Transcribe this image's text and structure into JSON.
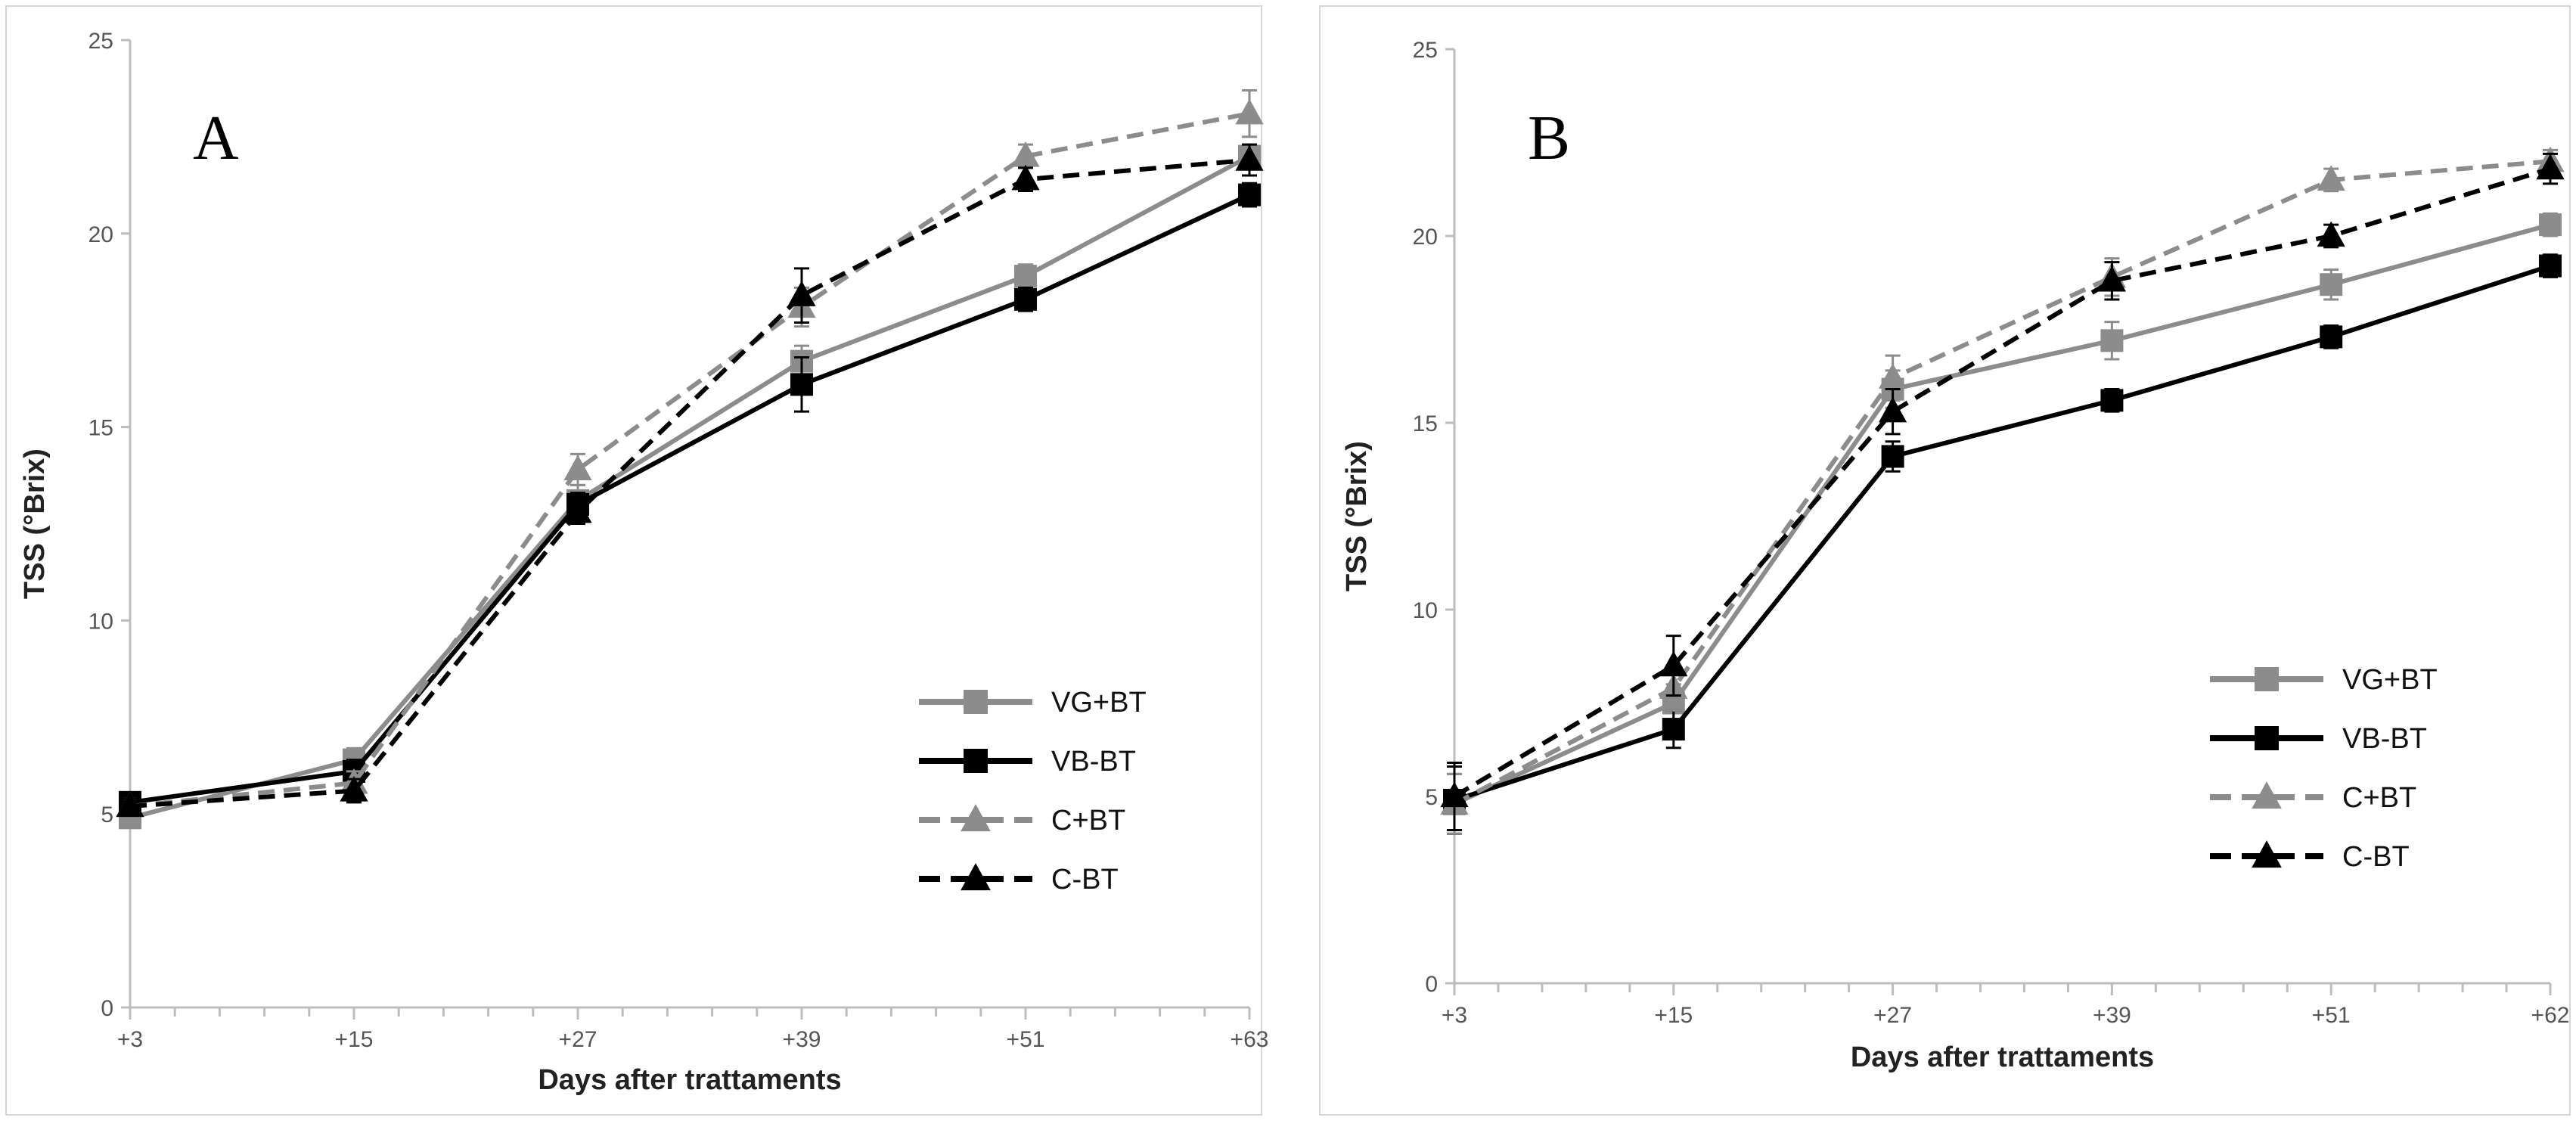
{
  "chart_data": [
    {
      "type": "line",
      "panel_label": "A",
      "xlabel": "Days after trattaments",
      "ylabel": "TSS (°Brix)",
      "categories": [
        "+3",
        "+15",
        "+27",
        "+39",
        "+51",
        "+63"
      ],
      "ylim": [
        0,
        25
      ],
      "yticks": [
        "0",
        "5",
        "10",
        "15",
        "20",
        "25"
      ],
      "legend_position": "lower-right",
      "series": [
        {
          "name": "VG+BT",
          "values": [
            4.9,
            6.4,
            13.1,
            16.7,
            18.9,
            22.0
          ],
          "errors": [
            0.2,
            0.3,
            0.4,
            0.4,
            0.3,
            0.3
          ],
          "color": "#8c8c8c",
          "dash": "solid",
          "marker": "square"
        },
        {
          "name": "VB-BT",
          "values": [
            5.3,
            6.1,
            13.0,
            16.1,
            18.3,
            21.0
          ],
          "errors": [
            0.2,
            0.3,
            0.3,
            0.7,
            0.3,
            0.3
          ],
          "color": "#000000",
          "dash": "solid",
          "marker": "square"
        },
        {
          "name": "C+BT",
          "values": [
            5.2,
            5.8,
            13.9,
            18.1,
            22.0,
            23.1
          ],
          "errors": [
            0.2,
            0.3,
            0.4,
            0.5,
            0.3,
            0.6
          ],
          "color": "#8c8c8c",
          "dash": "dashed",
          "marker": "triangle"
        },
        {
          "name": "C-BT",
          "values": [
            5.2,
            5.6,
            12.8,
            18.4,
            21.4,
            21.9
          ],
          "errors": [
            0.2,
            0.3,
            0.3,
            0.7,
            0.3,
            0.4
          ],
          "color": "#000000",
          "dash": "dashed",
          "marker": "triangle"
        }
      ]
    },
    {
      "type": "line",
      "panel_label": "B",
      "xlabel": "Days after trattaments",
      "ylabel": "TSS (°Brix)",
      "categories": [
        "+3",
        "+15",
        "+27",
        "+39",
        "+51",
        "+62"
      ],
      "ylim": [
        0,
        25
      ],
      "yticks": [
        "0",
        "5",
        "10",
        "15",
        "20",
        "25"
      ],
      "legend_position": "lower-right",
      "series": [
        {
          "name": "VG+BT",
          "values": [
            4.8,
            7.5,
            15.9,
            17.2,
            18.7,
            20.3
          ],
          "errors": [
            0.8,
            0.5,
            0.5,
            0.5,
            0.4,
            0.3
          ],
          "color": "#8c8c8c",
          "dash": "solid",
          "marker": "square"
        },
        {
          "name": "VB-BT",
          "values": [
            4.9,
            6.8,
            14.1,
            15.6,
            17.3,
            19.2
          ],
          "errors": [
            0.9,
            0.5,
            0.4,
            0.3,
            0.3,
            0.3
          ],
          "color": "#000000",
          "dash": "solid",
          "marker": "square"
        },
        {
          "name": "C+BT",
          "values": [
            4.8,
            7.9,
            16.2,
            18.9,
            21.5,
            22.0
          ],
          "errors": [
            0.8,
            0.6,
            0.6,
            0.5,
            0.3,
            0.3
          ],
          "color": "#8c8c8c",
          "dash": "dashed",
          "marker": "triangle"
        },
        {
          "name": "C-BT",
          "values": [
            5.0,
            8.5,
            15.3,
            18.8,
            20.0,
            21.8
          ],
          "errors": [
            0.9,
            0.8,
            0.6,
            0.5,
            0.3,
            0.4
          ],
          "color": "#000000",
          "dash": "dashed",
          "marker": "triangle"
        }
      ]
    }
  ]
}
